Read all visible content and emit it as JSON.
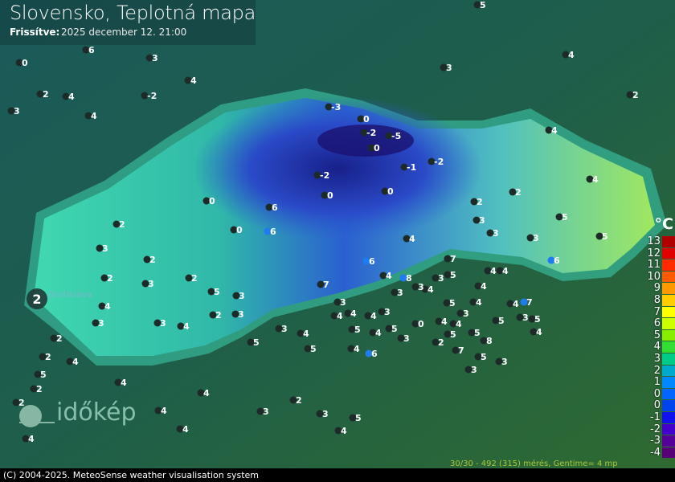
{
  "header": {
    "title": "Slovensko, Teplotná mapa",
    "updated_label": "Frissítve:",
    "updated_value": "2025 december 12. 21:00"
  },
  "legend": {
    "unit": "°C",
    "items": [
      {
        "label": "13",
        "color": "#b00000"
      },
      {
        "label": "12",
        "color": "#e00000"
      },
      {
        "label": "11",
        "color": "#ff2a00"
      },
      {
        "label": "10",
        "color": "#ff5a00"
      },
      {
        "label": "9",
        "color": "#ff9900"
      },
      {
        "label": "8",
        "color": "#ffcc00"
      },
      {
        "label": "7",
        "color": "#ffff00"
      },
      {
        "label": "6",
        "color": "#ccff00"
      },
      {
        "label": "5",
        "color": "#88ee00"
      },
      {
        "label": "4",
        "color": "#33dd33"
      },
      {
        "label": "3",
        "color": "#00cc88"
      },
      {
        "label": "2",
        "color": "#00aacc"
      },
      {
        "label": "1",
        "color": "#0088ff"
      },
      {
        "label": "0",
        "color": "#0066ff"
      },
      {
        "label": "0",
        "color": "#0044ee"
      },
      {
        "label": "-1",
        "color": "#1111ee"
      },
      {
        "label": "-2",
        "color": "#4400cc"
      },
      {
        "label": "-3",
        "color": "#550099"
      },
      {
        "label": "-4",
        "color": "#550077"
      }
    ]
  },
  "city_label": "Bratislava",
  "highlight_value": "2",
  "stations": [
    "5",
    "6",
    "0",
    "3",
    "4",
    "2",
    "4",
    "3",
    "4",
    "-2",
    "4",
    "3",
    "2",
    "-3",
    "0",
    "-2",
    "-5",
    "0",
    "-1",
    "-2",
    "-2",
    "0",
    "0",
    "2",
    "0",
    "6",
    "6",
    "0",
    "4",
    "5",
    "4",
    "4",
    "6",
    "2",
    "3",
    "5",
    "3",
    "3",
    "6",
    "7",
    "8",
    "4",
    "5",
    "3",
    "7",
    "4",
    "4",
    "4",
    "3",
    "7",
    "3",
    "4",
    "3",
    "5",
    "4",
    "3",
    "4",
    "4",
    "5",
    "4",
    "5",
    "4",
    "3",
    "2",
    "3",
    "2",
    "2",
    "3",
    "2",
    "2",
    "3",
    "4",
    "3",
    "3",
    "4",
    "3",
    "5",
    "5",
    "3",
    "4",
    "5",
    "5",
    "4",
    "5",
    "3",
    "0",
    "2",
    "5",
    "5",
    "4",
    "6",
    "8",
    "5",
    "7",
    "3",
    "3",
    "3",
    "4",
    "4",
    "4",
    "4",
    "2",
    "2",
    "2",
    "2",
    "4",
    "5",
    "4",
    "4",
    "4",
    "4",
    "3",
    "2",
    "3",
    "4",
    "5"
  ],
  "watermark": "időkép",
  "stats": "30/30 - 492 (315) mérés, Gentime= 4 mp",
  "footer": "(C) 2004-2025. MeteoSense weather visualisation system",
  "colors": {
    "background": "#1e5a48",
    "land_west": "#3fd6a0",
    "land_east": "#8de070",
    "mountains": "#2244cc",
    "footer": "#000000"
  }
}
